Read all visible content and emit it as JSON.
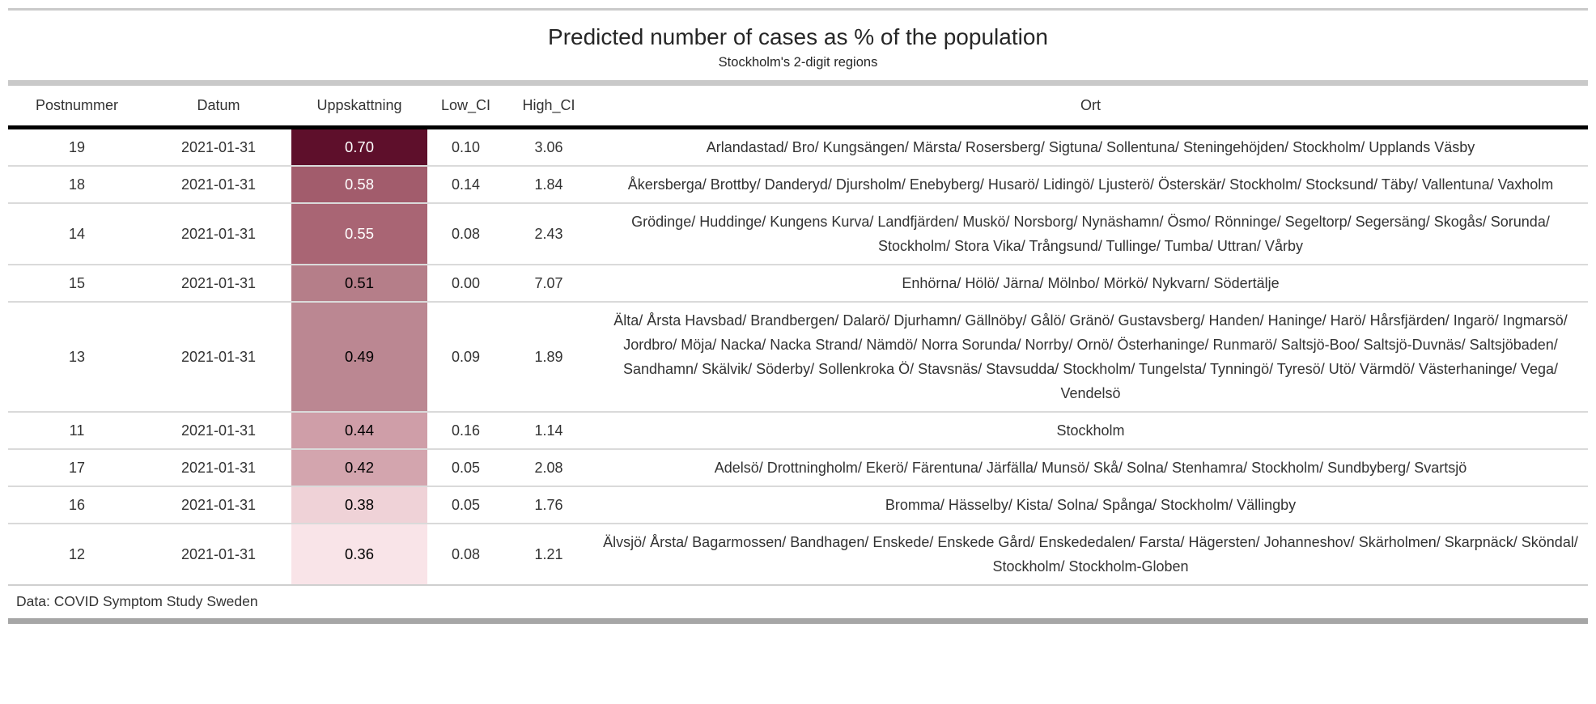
{
  "chart_data": {
    "type": "table",
    "title": "Predicted number of cases as % of the population",
    "subtitle": "Stockholm's 2-digit regions",
    "source_note": "Data: COVID Symptom Study Sweden",
    "layout_hints": {
      "heat_column": "uppskattning",
      "heat_scale_low_hex": "#f9e4e8",
      "heat_scale_high_hex": "#5e0f2b",
      "grid": "horizontal-row-separators",
      "header_rule_hex": "#000000",
      "frame_rule_hex": "#c9c9c9"
    },
    "columns": [
      {
        "key": "postnummer",
        "label": "Postnummer"
      },
      {
        "key": "datum",
        "label": "Datum"
      },
      {
        "key": "uppskattning",
        "label": "Uppskattning"
      },
      {
        "key": "low_ci",
        "label": "Low_CI"
      },
      {
        "key": "high_ci",
        "label": "High_CI"
      },
      {
        "key": "ort",
        "label": "Ort"
      }
    ],
    "rows": [
      {
        "postnummer": "19",
        "datum": "2021-01-31",
        "uppskattning": "0.70",
        "low_ci": "0.10",
        "high_ci": "3.06",
        "ort": "Arlandastad/ Bro/ Kungsängen/ Märsta/ Rosersberg/ Sigtuna/ Sollentuna/ Steningehöjden/ Stockholm/ Upplands Väsby",
        "cell_bg": "#5e0f2b",
        "cell_text": "#ffffff"
      },
      {
        "postnummer": "18",
        "datum": "2021-01-31",
        "uppskattning": "0.58",
        "low_ci": "0.14",
        "high_ci": "1.84",
        "ort": "Åkersberga/ Brottby/ Danderyd/ Djursholm/ Enebyberg/ Husarö/ Lidingö/ Ljusterö/ Österskär/ Stockholm/ Stocksund/ Täby/ Vallentuna/ Vaxholm",
        "cell_bg": "#a25c6c",
        "cell_text": "#ffffff"
      },
      {
        "postnummer": "14",
        "datum": "2021-01-31",
        "uppskattning": "0.55",
        "low_ci": "0.08",
        "high_ci": "2.43",
        "ort": "Grödinge/ Huddinge/ Kungens Kurva/ Landfjärden/ Muskö/ Norsborg/ Nynäshamn/ Ösmo/ Rönninge/ Segeltorp/ Segersäng/ Skogås/ Sorunda/ Stockholm/ Stora Vika/ Trångsund/ Tullinge/ Tumba/ Uttran/ Vårby",
        "cell_bg": "#a96574",
        "cell_text": "#ffffff"
      },
      {
        "postnummer": "15",
        "datum": "2021-01-31",
        "uppskattning": "0.51",
        "low_ci": "0.00",
        "high_ci": "7.07",
        "ort": "Enhörna/ Hölö/ Järna/ Mölnbo/ Mörkö/ Nykvarn/ Södertälje",
        "cell_bg": "#b57e89",
        "cell_text": "#000000"
      },
      {
        "postnummer": "13",
        "datum": "2021-01-31",
        "uppskattning": "0.49",
        "low_ci": "0.09",
        "high_ci": "1.89",
        "ort": "Älta/ Årsta Havsbad/ Brandbergen/ Dalarö/ Djurhamn/ Gällnöby/ Gålö/ Gränö/ Gustavsberg/ Handen/ Haninge/ Harö/ Hårsfjärden/ Ingarö/ Ingmarsö/ Jordbro/ Möja/ Nacka/ Nacka Strand/ Nämdö/ Norra Sorunda/ Norrby/ Ornö/ Österhaninge/ Runmarö/ Saltsjö-Boo/ Saltsjö-Duvnäs/ Saltsjöbaden/ Sandhamn/ Skälvik/ Söderby/ Sollenkroka Ö/ Stavsnäs/ Stavsudda/ Stockholm/ Tungelsta/ Tynningö/ Tyresö/ Utö/ Värmdö/ Västerhaninge/ Vega/ Vendelsö",
        "cell_bg": "#bb8792",
        "cell_text": "#000000"
      },
      {
        "postnummer": "11",
        "datum": "2021-01-31",
        "uppskattning": "0.44",
        "low_ci": "0.16",
        "high_ci": "1.14",
        "ort": "Stockholm",
        "cell_bg": "#cf9ea8",
        "cell_text": "#000000"
      },
      {
        "postnummer": "17",
        "datum": "2021-01-31",
        "uppskattning": "0.42",
        "low_ci": "0.05",
        "high_ci": "2.08",
        "ort": "Adelsö/ Drottningholm/ Ekerö/ Färentuna/ Järfälla/ Munsö/ Skå/ Solna/ Stenhamra/ Stockholm/ Sundbyberg/ Svartsjö",
        "cell_bg": "#d3a5ae",
        "cell_text": "#000000"
      },
      {
        "postnummer": "16",
        "datum": "2021-01-31",
        "uppskattning": "0.38",
        "low_ci": "0.05",
        "high_ci": "1.76",
        "ort": "Bromma/ Hässelby/ Kista/ Solna/ Spånga/ Stockholm/ Vällingby",
        "cell_bg": "#efd2d7",
        "cell_text": "#000000"
      },
      {
        "postnummer": "12",
        "datum": "2021-01-31",
        "uppskattning": "0.36",
        "low_ci": "0.08",
        "high_ci": "1.21",
        "ort": "Älvsjö/ Årsta/ Bagarmossen/ Bandhagen/ Enskede/ Enskede Gård/ Enskededalen/ Farsta/ Hägersten/ Johanneshov/ Skärholmen/ Skarpnäck/ Sköndal/ Stockholm/ Stockholm-Globen",
        "cell_bg": "#f9e4e8",
        "cell_text": "#000000"
      }
    ]
  }
}
